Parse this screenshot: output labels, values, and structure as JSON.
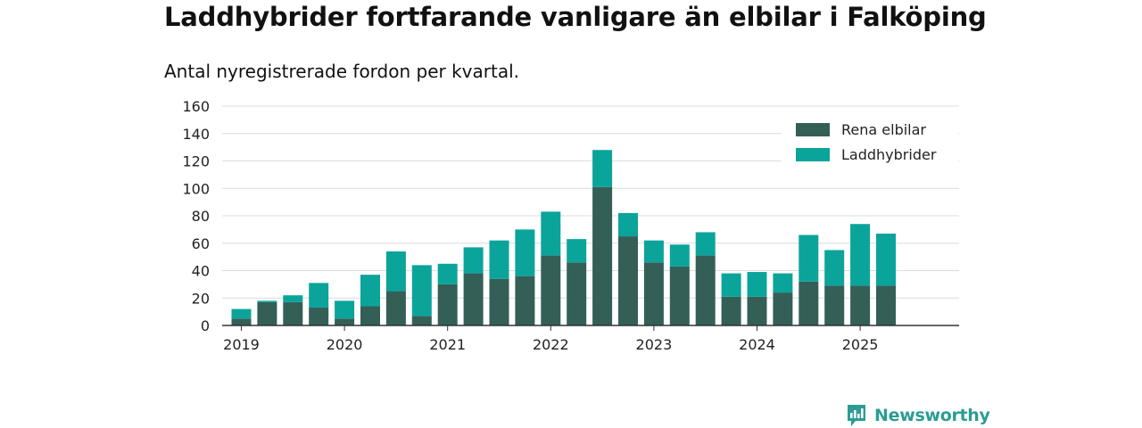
{
  "chart_data": {
    "type": "bar",
    "stacked": true,
    "title": "Laddhybrider fortfarande vanligare än elbilar i Falköping",
    "subtitle": "Antal nyregistrerade fordon per kvartal.",
    "xlabel": "",
    "ylabel": "",
    "ylim": [
      0,
      160
    ],
    "yticks": [
      0,
      20,
      40,
      60,
      80,
      100,
      120,
      140,
      160
    ],
    "xticks": [
      "2019",
      "2020",
      "2021",
      "2022",
      "2023",
      "2024",
      "2025"
    ],
    "grid": true,
    "legend_position": "top-right",
    "categories": [
      "2019 Q1",
      "2019 Q2",
      "2019 Q3",
      "2019 Q4",
      "2020 Q1",
      "2020 Q2",
      "2020 Q3",
      "2020 Q4",
      "2021 Q1",
      "2021 Q2",
      "2021 Q3",
      "2021 Q4",
      "2022 Q1",
      "2022 Q2",
      "2022 Q3",
      "2022 Q4",
      "2023 Q1",
      "2023 Q2",
      "2023 Q3",
      "2023 Q4",
      "2024 Q1",
      "2024 Q2",
      "2024 Q3",
      "2024 Q4",
      "2025 Q1",
      "2025 Q2",
      "2025 Q3"
    ],
    "series": [
      {
        "name": "Rena elbilar",
        "color": "#335f57",
        "values": [
          5,
          17,
          17,
          13,
          5,
          14,
          25,
          7,
          30,
          38,
          34,
          36,
          51,
          46,
          101,
          65,
          46,
          43,
          51,
          21,
          21,
          24,
          32,
          29,
          29,
          29,
          0
        ]
      },
      {
        "name": "Laddhybrider",
        "color": "#0ba49b",
        "values": [
          7,
          1,
          5,
          18,
          13,
          23,
          29,
          37,
          15,
          19,
          28,
          34,
          32,
          17,
          27,
          17,
          16,
          16,
          17,
          17,
          18,
          14,
          34,
          26,
          45,
          38,
          0
        ]
      }
    ]
  },
  "brand": {
    "name": "Newsworthy",
    "color": "#2c9c96"
  }
}
